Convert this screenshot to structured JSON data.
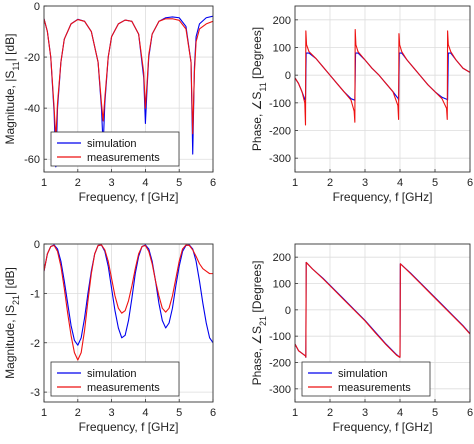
{
  "colors": {
    "simulation": "#0000ee",
    "measurements": "#ee1111",
    "grid": "#dddddd",
    "axis": "#333333"
  },
  "legend_labels": {
    "simulation": "simulation",
    "measurements": "measurements"
  },
  "chart_data": [
    {
      "id": "s11-mag",
      "type": "line",
      "xlabel": "Frequency, f [GHz]",
      "ylabel": "Magnitude, |S11| [dB]",
      "xlim": [
        1,
        6
      ],
      "ylim": [
        -65,
        0
      ],
      "xticks": [
        1,
        2,
        3,
        4,
        5,
        6
      ],
      "yticks": [
        0,
        -20,
        -40,
        -60
      ],
      "grid": true,
      "legend": "bottom-left",
      "series": [
        {
          "name": "simulation",
          "x": [
            1.0,
            1.1,
            1.2,
            1.3,
            1.35,
            1.4,
            1.5,
            1.6,
            1.8,
            2.0,
            2.2,
            2.4,
            2.6,
            2.7,
            2.75,
            2.8,
            2.9,
            3.0,
            3.2,
            3.4,
            3.6,
            3.8,
            3.95,
            4.0,
            4.05,
            4.1,
            4.2,
            4.4,
            4.6,
            4.8,
            5.0,
            5.2,
            5.35,
            5.4,
            5.45,
            5.5,
            5.6,
            5.8,
            6.0
          ],
          "y": [
            -5,
            -10,
            -20,
            -42,
            -63,
            -40,
            -22,
            -13,
            -7,
            -5.2,
            -6,
            -10,
            -22,
            -40,
            -55,
            -38,
            -20,
            -12,
            -7,
            -5.5,
            -6,
            -11,
            -28,
            -46,
            -32,
            -20,
            -11,
            -6,
            -4.6,
            -4.3,
            -4.6,
            -8,
            -22,
            -58,
            -24,
            -12,
            -7,
            -4.6,
            -4
          ]
        },
        {
          "name": "measurements",
          "x": [
            1.0,
            1.1,
            1.2,
            1.3,
            1.35,
            1.4,
            1.5,
            1.6,
            1.8,
            2.0,
            2.2,
            2.4,
            2.6,
            2.7,
            2.75,
            2.8,
            2.9,
            3.0,
            3.2,
            3.4,
            3.6,
            3.8,
            3.95,
            4.0,
            4.05,
            4.1,
            4.2,
            4.4,
            4.6,
            4.8,
            5.0,
            5.2,
            5.35,
            5.4,
            5.45,
            5.5,
            5.6,
            5.8,
            6.0
          ],
          "y": [
            -5,
            -10,
            -20,
            -40,
            -52,
            -38,
            -22,
            -13,
            -7,
            -5.3,
            -6,
            -10,
            -22,
            -38,
            -45,
            -36,
            -20,
            -12,
            -7,
            -5.5,
            -6,
            -11,
            -26,
            -40,
            -30,
            -19,
            -11,
            -6,
            -5,
            -5,
            -5.6,
            -9,
            -22,
            -50,
            -26,
            -14,
            -9,
            -7,
            -6
          ]
        }
      ]
    },
    {
      "id": "s11-phase",
      "type": "line",
      "xlabel": "Frequency, f [GHz]",
      "ylabel": "Phase, ∠S11 [Degrees]",
      "xlim": [
        1,
        6
      ],
      "ylim": [
        -350,
        250
      ],
      "xticks": [
        1,
        2,
        3,
        4,
        5,
        6
      ],
      "yticks": [
        200,
        100,
        0,
        -100,
        -200,
        -300
      ],
      "grid": true,
      "legend": "bottom-left",
      "series": [
        {
          "name": "simulation",
          "x": [
            1.0,
            1.1,
            1.2,
            1.29,
            1.3,
            1.32,
            1.4,
            1.6,
            1.8,
            2.0,
            2.2,
            2.4,
            2.6,
            2.7,
            2.71,
            2.73,
            2.8,
            3.0,
            3.2,
            3.4,
            3.6,
            3.8,
            3.95,
            3.96,
            3.98,
            4.05,
            4.2,
            4.4,
            4.6,
            4.8,
            5.0,
            5.2,
            5.35,
            5.36,
            5.38,
            5.45,
            5.6,
            5.8,
            6.0
          ],
          "y": [
            -10,
            -30,
            -60,
            -90,
            -90,
            80,
            80,
            60,
            30,
            0,
            -30,
            -60,
            -85,
            -90,
            -90,
            80,
            80,
            55,
            25,
            0,
            -30,
            -60,
            -85,
            -90,
            80,
            80,
            55,
            25,
            -5,
            -35,
            -60,
            -80,
            -88,
            -90,
            80,
            80,
            55,
            25,
            10
          ]
        },
        {
          "name": "measurements",
          "x": [
            1.0,
            1.1,
            1.2,
            1.28,
            1.3,
            1.31,
            1.33,
            1.4,
            1.6,
            1.8,
            2.0,
            2.2,
            2.4,
            2.6,
            2.69,
            2.71,
            2.72,
            2.74,
            2.8,
            3.0,
            3.2,
            3.4,
            3.6,
            3.8,
            3.94,
            3.96,
            3.97,
            3.99,
            4.05,
            4.2,
            4.4,
            4.6,
            4.8,
            5.0,
            5.2,
            5.33,
            5.35,
            5.36,
            5.38,
            5.45,
            5.6,
            5.8,
            6.0
          ],
          "y": [
            -10,
            -30,
            -60,
            -100,
            -180,
            160,
            110,
            85,
            60,
            30,
            0,
            -30,
            -60,
            -90,
            -130,
            -170,
            165,
            110,
            85,
            55,
            25,
            0,
            -30,
            -60,
            -110,
            -160,
            150,
            110,
            85,
            55,
            25,
            -5,
            -35,
            -60,
            -85,
            -120,
            -160,
            160,
            110,
            85,
            55,
            25,
            10
          ]
        }
      ]
    },
    {
      "id": "s21-mag",
      "type": "line",
      "xlabel": "Frequency, f [GHz]",
      "ylabel": "Magnitude, |S21| [dB]",
      "xlim": [
        1,
        6
      ],
      "ylim": [
        -3.2,
        0
      ],
      "xticks": [
        1,
        2,
        3,
        4,
        5,
        6
      ],
      "yticks": [
        0,
        -1,
        -2,
        -3
      ],
      "grid": true,
      "legend": "bottom-left",
      "series": [
        {
          "name": "simulation",
          "x": [
            1.0,
            1.1,
            1.2,
            1.3,
            1.4,
            1.5,
            1.6,
            1.7,
            1.8,
            1.9,
            2.0,
            2.1,
            2.2,
            2.3,
            2.4,
            2.5,
            2.6,
            2.7,
            2.8,
            2.9,
            3.0,
            3.1,
            3.2,
            3.3,
            3.4,
            3.5,
            3.6,
            3.7,
            3.8,
            3.9,
            4.0,
            4.1,
            4.2,
            4.3,
            4.4,
            4.5,
            4.6,
            4.7,
            4.8,
            4.9,
            5.0,
            5.1,
            5.2,
            5.3,
            5.4,
            5.5,
            5.6,
            5.7,
            5.8,
            5.9,
            6.0
          ],
          "y": [
            -0.55,
            -0.2,
            -0.05,
            -0.02,
            -0.1,
            -0.35,
            -0.75,
            -1.2,
            -1.65,
            -1.95,
            -2.05,
            -1.9,
            -1.5,
            -1.0,
            -0.55,
            -0.2,
            -0.03,
            -0.02,
            -0.15,
            -0.45,
            -0.9,
            -1.35,
            -1.7,
            -1.9,
            -1.85,
            -1.55,
            -1.1,
            -0.6,
            -0.25,
            -0.05,
            -0.02,
            -0.1,
            -0.35,
            -0.75,
            -1.2,
            -1.55,
            -1.7,
            -1.6,
            -1.3,
            -0.85,
            -0.45,
            -0.15,
            -0.03,
            -0.02,
            -0.1,
            -0.35,
            -0.75,
            -1.2,
            -1.6,
            -1.9,
            -2.0
          ]
        },
        {
          "name": "measurements",
          "x": [
            1.0,
            1.1,
            1.2,
            1.3,
            1.4,
            1.5,
            1.6,
            1.7,
            1.8,
            1.9,
            2.0,
            2.1,
            2.2,
            2.3,
            2.4,
            2.5,
            2.6,
            2.7,
            2.8,
            2.9,
            3.0,
            3.1,
            3.2,
            3.3,
            3.4,
            3.5,
            3.6,
            3.7,
            3.8,
            3.9,
            4.0,
            4.1,
            4.2,
            4.3,
            4.4,
            4.5,
            4.6,
            4.7,
            4.8,
            4.9,
            5.0,
            5.1,
            5.2,
            5.3,
            5.4,
            5.5,
            5.6,
            5.7,
            5.8,
            5.9,
            6.0
          ],
          "y": [
            -0.55,
            -0.2,
            -0.05,
            -0.03,
            -0.15,
            -0.45,
            -0.9,
            -1.4,
            -1.85,
            -2.2,
            -2.35,
            -2.2,
            -1.75,
            -1.15,
            -0.6,
            -0.2,
            -0.03,
            -0.02,
            -0.12,
            -0.35,
            -0.7,
            -1.05,
            -1.3,
            -1.4,
            -1.35,
            -1.15,
            -0.85,
            -0.5,
            -0.2,
            -0.05,
            -0.03,
            -0.15,
            -0.4,
            -0.75,
            -1.05,
            -1.3,
            -1.38,
            -1.3,
            -1.05,
            -0.7,
            -0.35,
            -0.1,
            -0.02,
            -0.03,
            -0.12,
            -0.25,
            -0.4,
            -0.5,
            -0.55,
            -0.6,
            -0.6
          ]
        }
      ]
    },
    {
      "id": "s21-phase",
      "type": "line",
      "xlabel": "Frequency, f [GHz]",
      "ylabel": "Phase, ∠S21 [Degrees]",
      "xlim": [
        1,
        6
      ],
      "ylim": [
        -350,
        250
      ],
      "xticks": [
        1,
        2,
        3,
        4,
        5,
        6
      ],
      "yticks": [
        200,
        100,
        0,
        -100,
        -200,
        -300
      ],
      "grid": true,
      "legend": "bottom-left",
      "series": [
        {
          "name": "simulation",
          "x": [
            1.0,
            1.1,
            1.2,
            1.3,
            1.31,
            1.32,
            1.5,
            1.8,
            2.1,
            2.4,
            2.7,
            3.0,
            3.3,
            3.6,
            3.9,
            3.99,
            4.0,
            4.01,
            4.3,
            4.6,
            4.9,
            5.2,
            5.5,
            5.8,
            6.0
          ],
          "y": [
            -130,
            -155,
            -165,
            -175,
            -180,
            180,
            155,
            120,
            80,
            40,
            0,
            -40,
            -85,
            -130,
            -170,
            -180,
            -180,
            175,
            140,
            100,
            60,
            20,
            -20,
            -60,
            -90
          ]
        },
        {
          "name": "measurements",
          "x": [
            1.0,
            1.1,
            1.2,
            1.3,
            1.31,
            1.32,
            1.5,
            1.8,
            2.1,
            2.4,
            2.7,
            3.0,
            3.3,
            3.6,
            3.9,
            3.99,
            4.0,
            4.01,
            4.3,
            4.6,
            4.9,
            5.2,
            5.5,
            5.8,
            6.0
          ],
          "y": [
            -130,
            -155,
            -165,
            -175,
            -180,
            180,
            155,
            118,
            78,
            38,
            -2,
            -42,
            -88,
            -132,
            -172,
            -180,
            -180,
            175,
            138,
            98,
            58,
            18,
            -22,
            -62,
            -92
          ]
        }
      ]
    }
  ]
}
